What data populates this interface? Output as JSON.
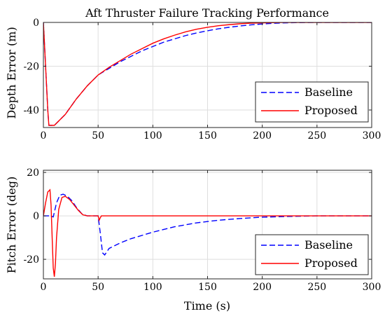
{
  "chart_data": [
    {
      "type": "line",
      "title": "Aft Thruster Failure Tracking Performance",
      "xlabel": "",
      "ylabel": "Depth Error (m)",
      "xlim": [
        0,
        300
      ],
      "ylim": [
        -48,
        0
      ],
      "xticks": [
        0,
        50,
        100,
        150,
        200,
        250,
        300
      ],
      "yticks": [
        0,
        -20,
        -40
      ],
      "grid": true,
      "legend_position": "bottom-right",
      "series": [
        {
          "name": "Baseline",
          "color": "#0000ff",
          "style": "dashed",
          "x": [
            0,
            2,
            4,
            5,
            10,
            20,
            30,
            40,
            50,
            60,
            70,
            80,
            90,
            100,
            110,
            120,
            130,
            140,
            150,
            160,
            170,
            180,
            190,
            200,
            210,
            220,
            230,
            250,
            270,
            300
          ],
          "y": [
            0,
            -20,
            -40,
            -47,
            -47,
            -42,
            -35,
            -29,
            -24,
            -21,
            -18,
            -15.5,
            -13,
            -11,
            -9,
            -7.5,
            -6,
            -4.8,
            -3.8,
            -2.9,
            -2.2,
            -1.6,
            -1.1,
            -0.7,
            -0.4,
            -0.2,
            -0.1,
            0,
            0,
            0
          ]
        },
        {
          "name": "Proposed",
          "color": "#ff0000",
          "style": "solid",
          "x": [
            0,
            2,
            4,
            5,
            10,
            20,
            30,
            40,
            50,
            60,
            70,
            80,
            90,
            100,
            110,
            120,
            130,
            140,
            150,
            160,
            170,
            180,
            190,
            200,
            210,
            220,
            230,
            250,
            270,
            300
          ],
          "y": [
            0,
            -20,
            -40,
            -47,
            -47,
            -42,
            -35,
            -29,
            -24,
            -20.5,
            -17.5,
            -14.5,
            -12,
            -9.5,
            -7.5,
            -5.8,
            -4.3,
            -3.1,
            -2.2,
            -1.5,
            -1,
            -0.6,
            -0.35,
            -0.2,
            -0.1,
            0,
            0,
            0,
            0,
            0
          ]
        }
      ]
    },
    {
      "type": "line",
      "title": "",
      "xlabel": "Time (s)",
      "ylabel": "Pitch Error (deg)",
      "xlim": [
        0,
        300
      ],
      "ylim": [
        -29,
        21
      ],
      "xticks": [
        0,
        50,
        100,
        150,
        200,
        250,
        300
      ],
      "yticks": [
        20,
        0,
        -20
      ],
      "grid": true,
      "legend_position": "bottom-right",
      "series": [
        {
          "name": "Baseline",
          "color": "#0000ff",
          "style": "dashed",
          "x": [
            0,
            3,
            6,
            9,
            12,
            15,
            18,
            22,
            26,
            30,
            35,
            40,
            45,
            50,
            52,
            54,
            56,
            60,
            70,
            80,
            100,
            120,
            140,
            160,
            180,
            200,
            220,
            250,
            300
          ],
          "y": [
            0,
            0,
            0,
            -0.5,
            6,
            9.5,
            10,
            9,
            7,
            4,
            1,
            0,
            0,
            0,
            -8,
            -17,
            -18,
            -15,
            -12.5,
            -10.5,
            -7.5,
            -5,
            -3.2,
            -2,
            -1.2,
            -0.6,
            -0.3,
            0,
            0
          ]
        },
        {
          "name": "Proposed",
          "color": "#ff0000",
          "style": "solid",
          "x": [
            0,
            2,
            4,
            6,
            7,
            8,
            9,
            10,
            11,
            12,
            14,
            17,
            20,
            24,
            28,
            32,
            36,
            40,
            45,
            50,
            51,
            52,
            53,
            55,
            60,
            80,
            100,
            150,
            200,
            250,
            300
          ],
          "y": [
            0,
            6,
            11,
            12,
            5,
            -10,
            -24,
            -28,
            -22,
            -10,
            3,
            8.5,
            9,
            7.5,
            5,
            2.5,
            0.5,
            0,
            0,
            0,
            -2,
            -0.8,
            0,
            0,
            0,
            0,
            0,
            0,
            0,
            0,
            0
          ]
        }
      ]
    }
  ]
}
